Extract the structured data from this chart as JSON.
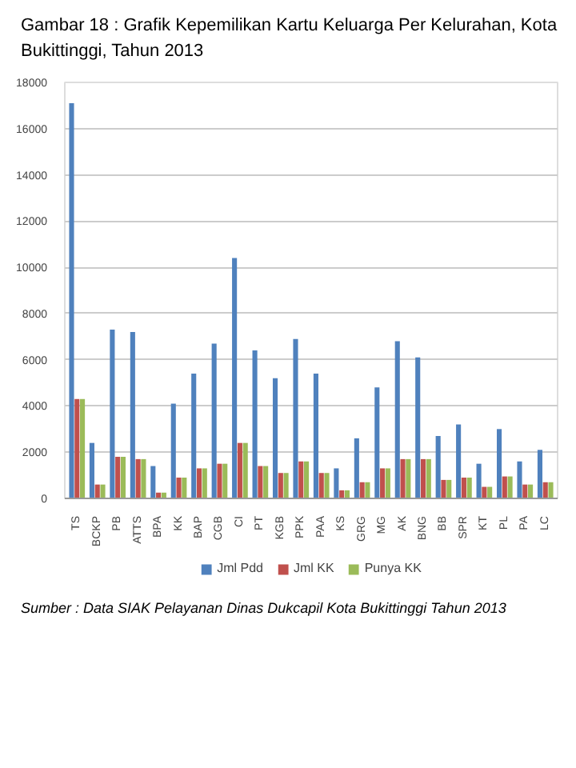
{
  "chart_data": {
    "type": "bar",
    "title": "Gambar 18 : Grafik Kepemilikan Kartu Keluarga Per Kelurahan, Kota Bukittinggi, Tahun 2013",
    "categories": [
      "TS",
      "BCKP",
      "PB",
      "ATTS",
      "BPA",
      "KK",
      "BAP",
      "CGB",
      "CI",
      "PT",
      "KGB",
      "PPK",
      "PAA",
      "KS",
      "GRG",
      "MG",
      "AK",
      "BNG",
      "BB",
      "SPR",
      "KT",
      "PL",
      "PA",
      "LC"
    ],
    "series": [
      {
        "name": "Jml Pdd",
        "color": "#4f81bd",
        "values": [
          17100,
          2400,
          7300,
          7200,
          1400,
          4100,
          5400,
          6700,
          10400,
          6400,
          5200,
          6900,
          5400,
          1300,
          2600,
          4800,
          6800,
          6100,
          2700,
          3200,
          1500,
          3000,
          1600,
          2100
        ]
      },
      {
        "name": "Jml KK",
        "color": "#c0504d",
        "values": [
          4300,
          600,
          1800,
          1700,
          250,
          900,
          1300,
          1500,
          2400,
          1400,
          1100,
          1600,
          1100,
          350,
          700,
          1300,
          1700,
          1700,
          800,
          900,
          500,
          950,
          600,
          700
        ]
      },
      {
        "name": "Punya KK",
        "color": "#9bbb59",
        "values": [
          4300,
          600,
          1800,
          1700,
          250,
          900,
          1300,
          1500,
          2400,
          1400,
          1100,
          1600,
          1100,
          350,
          700,
          1300,
          1700,
          1700,
          800,
          900,
          500,
          950,
          600,
          700
        ]
      }
    ],
    "ylim": [
      0,
      18000
    ],
    "yticks": [
      0,
      2000,
      4000,
      6000,
      8000,
      10000,
      12000,
      14000,
      16000,
      18000
    ],
    "grid": "y",
    "legend": "bottom",
    "annotations": [
      "Sumber : Data SIAK Pelayanan Dinas Dukcapil Kota Bukittinggi Tahun 2013"
    ]
  }
}
